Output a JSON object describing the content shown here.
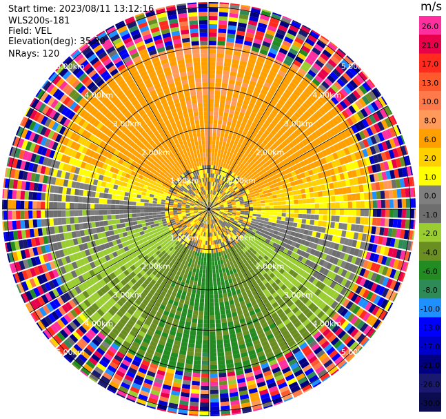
{
  "header": {
    "start_time": "Start time: 2023/08/11 13:12:16",
    "instrument": "WLS200s-181",
    "field": "Field: VEL",
    "elevation": "Elevation(deg): 35.30",
    "nrays": "NRays: 120"
  },
  "colorbar": {
    "unit": "m/s",
    "ticks": [
      "26.0",
      "21.0",
      "17.0",
      "13.0",
      "10.0",
      "8.0",
      "6.0",
      "2.0",
      "1.0",
      "0.0",
      "-1.0",
      "-2.0",
      "-4.0",
      "-6.0",
      "-8.0",
      "-10.0",
      "-13.0",
      "-17.0",
      "-21.0",
      "-26.0",
      "-30.0"
    ],
    "colors": [
      "#ff2fa0",
      "#e8004a",
      "#ff2b1e",
      "#ff5a2e",
      "#ff7a4a",
      "#ff9a5a",
      "#ffa000",
      "#ffd000",
      "#ffff00",
      "#7f7f7f",
      "#6e6e6e",
      "#9acd32",
      "#6b8e23",
      "#228b22",
      "#2e8b57",
      "#1e90ff",
      "#0000ff",
      "#0000cd",
      "#000080",
      "#191970",
      "#0b0b50"
    ]
  },
  "ring_labels": [
    "1.00km",
    "2.00km",
    "3.00km",
    "4.00km",
    "5.00km"
  ],
  "chart_data": {
    "type": "heatmap",
    "projection": "PPI polar scan",
    "field": "VEL",
    "units": "m/s",
    "elevation_deg": 35.3,
    "nrays": 120,
    "range_rings_km": [
      1,
      2,
      3,
      4,
      5
    ],
    "value_range": [
      -30,
      26
    ],
    "azimuth_pattern": [
      {
        "azimuth_deg": 0,
        "value": 6.0
      },
      {
        "azimuth_deg": 45,
        "value": 4.0
      },
      {
        "azimuth_deg": 90,
        "value": 1.0
      },
      {
        "azimuth_deg": 135,
        "value": -4.0
      },
      {
        "azimuth_deg": 180,
        "value": -7.0
      },
      {
        "azimuth_deg": 225,
        "value": -4.0
      },
      {
        "azimuth_deg": 270,
        "value": -1.0
      },
      {
        "azimuth_deg": 315,
        "value": 4.0
      }
    ],
    "near_range_values": [
      0.0,
      2.0,
      -2.0
    ]
  }
}
